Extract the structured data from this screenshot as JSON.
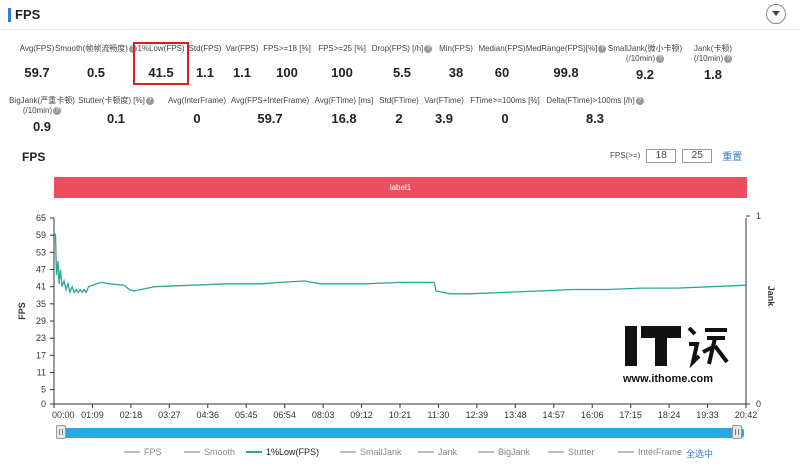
{
  "header": {
    "title": "FPS"
  },
  "stats_row1": [
    {
      "label": "Avg(FPS)",
      "value": "59.7",
      "help": false
    },
    {
      "label": "Smooth(",
      "label_suffix": "帧帧流畅度)",
      "value": "0.5",
      "help": true
    },
    {
      "label": "1%Low(FPS)",
      "value": "41.5",
      "help": false,
      "highlighted": true
    },
    {
      "label": "Std(FPS)",
      "value": "1.1",
      "help": false
    },
    {
      "label": "Var(FPS)",
      "value": "1.1",
      "help": false
    },
    {
      "label": "FPS>=18 [%]",
      "value": "100",
      "help": false
    },
    {
      "label": "FPS>=25 [%]",
      "value": "100",
      "help": false
    },
    {
      "label": "Drop(FPS) [/h]",
      "value": "5.5",
      "help": true
    },
    {
      "label": "Min(FPS)",
      "value": "38",
      "help": false
    },
    {
      "label": "Median(FPS)",
      "value": "60",
      "help": false
    },
    {
      "label": "MedRange(FPS)[%]",
      "value": "99.8",
      "help": true
    },
    {
      "label": "SmallJank(微小卡顿)",
      "label2": "(/10min)",
      "value": "9.2",
      "help": true
    },
    {
      "label": "Jank(卡顿)",
      "label2": "(/10min)",
      "value": "1.8",
      "help": true
    }
  ],
  "stats_row2": [
    {
      "label": "BigJank(严重卡顿)",
      "label2": "(/10min)",
      "value": "0.9",
      "help": true
    },
    {
      "label": "Stutter(卡顿度) [%]",
      "value": "0.1",
      "help": true
    },
    {
      "label": "Avg(InterFrame)",
      "value": "0",
      "help": false
    },
    {
      "label": "Avg(FPS+InterFrame)",
      "value": "59.7",
      "help": false
    },
    {
      "label": "Avg(FTime) [ms]",
      "value": "16.8",
      "help": false
    },
    {
      "label": "Std(FTime)",
      "value": "2",
      "help": false
    },
    {
      "label": "Var(FTime)",
      "value": "3.9",
      "help": false
    },
    {
      "label": "FTime>=100ms [%]",
      "value": "0",
      "help": false
    },
    {
      "label": "Delta(FTime)>100ms [/h]",
      "value": "8.3",
      "help": true
    }
  ],
  "chart_section": {
    "title": "FPS",
    "filter_label": "FPS(>=)",
    "filter_value_1": "18",
    "filter_value_2": "25",
    "reset_label": "重置",
    "band_label": "label1"
  },
  "chart_data": {
    "type": "line",
    "ylabel": "FPS",
    "y2label": "Jank",
    "ylim": [
      0,
      65
    ],
    "yticks": [
      0,
      5,
      11,
      17,
      23,
      29,
      35,
      41,
      47,
      53,
      59,
      65
    ],
    "y2ticks": [
      0,
      1
    ],
    "xticks": [
      "00:00",
      "01:09",
      "02:18",
      "03:27",
      "04:36",
      "05:45",
      "06:54",
      "08:03",
      "09:12",
      "10:21",
      "11:30",
      "12:39",
      "13:48",
      "14:57",
      "16:06",
      "17:15",
      "18:24",
      "19:33",
      "20:42"
    ],
    "series": [
      {
        "name": "1%Low(FPS)",
        "color": "#2aa79b",
        "points": [
          [
            0,
            60
          ],
          [
            3,
            59
          ],
          [
            5,
            45
          ],
          [
            8,
            50
          ],
          [
            10,
            42
          ],
          [
            13,
            47
          ],
          [
            16,
            41
          ],
          [
            20,
            43
          ],
          [
            24,
            40
          ],
          [
            28,
            42
          ],
          [
            32,
            39
          ],
          [
            36,
            41
          ],
          [
            40,
            39
          ],
          [
            44,
            40
          ],
          [
            48,
            39
          ],
          [
            52,
            40
          ],
          [
            56,
            39
          ],
          [
            60,
            40
          ],
          [
            64,
            39
          ],
          [
            69,
            41
          ],
          [
            85,
            42
          ],
          [
            95,
            42.5
          ],
          [
            110,
            42
          ],
          [
            140,
            41.5
          ],
          [
            150,
            40
          ],
          [
            160,
            39.5
          ],
          [
            200,
            41
          ],
          [
            276,
            41.5
          ],
          [
            345,
            42
          ],
          [
            414,
            42
          ],
          [
            450,
            42.5
          ],
          [
            500,
            43
          ],
          [
            531,
            42
          ],
          [
            560,
            42
          ],
          [
            600,
            42
          ],
          [
            621,
            42
          ],
          [
            690,
            42.5
          ],
          [
            740,
            42.5
          ],
          [
            758,
            42.5
          ],
          [
            762,
            39.5
          ],
          [
            790,
            38.5
          ],
          [
            828,
            38.5
          ],
          [
            897,
            39
          ],
          [
            966,
            39.5
          ],
          [
            1035,
            40
          ],
          [
            1104,
            40
          ],
          [
            1173,
            40.5
          ],
          [
            1242,
            40.5
          ],
          [
            1311,
            41
          ],
          [
            1380,
            41.5
          ]
        ]
      }
    ],
    "xmax_seconds": 1380
  },
  "legend": [
    {
      "label": "FPS",
      "active": false
    },
    {
      "label": "Smooth",
      "active": false
    },
    {
      "label": "1%Low(FPS)",
      "active": true
    },
    {
      "label": "SmallJank",
      "active": false
    },
    {
      "label": "Jank",
      "active": false
    },
    {
      "label": "BigJank",
      "active": false
    },
    {
      "label": "Stutter",
      "active": false
    },
    {
      "label": "InterFrame",
      "active": false
    }
  ],
  "legend_select_all": "全选中",
  "watermark": {
    "url": "www.ithome.com"
  },
  "colors": {
    "accent": "#2f7bd8",
    "band": "#ea4f61",
    "series": "#2aa79b",
    "highlight": "#d42020",
    "slider": "#2aa6e0"
  }
}
